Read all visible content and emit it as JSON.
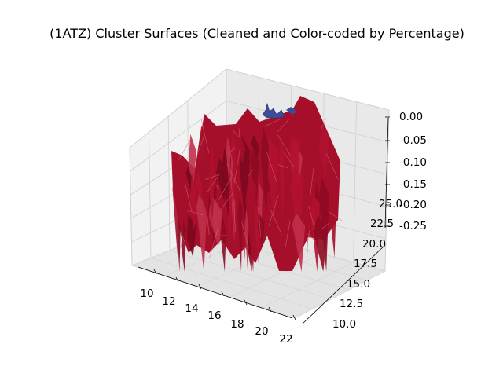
{
  "chart_data": {
    "type": "surface3d",
    "title": "(1ATZ) Cluster Surfaces (Cleaned and Color-coded by Percentage)",
    "xlabel": "",
    "ylabel": "",
    "zlabel": "",
    "x_ticks": [
      "10",
      "12",
      "14",
      "16",
      "18",
      "20",
      "22"
    ],
    "y_ticks": [
      "10.0",
      "12.5",
      "15.0",
      "17.5",
      "20.0",
      "22.5",
      "25.0"
    ],
    "z_ticks": [
      "0.00",
      "-0.05",
      "-0.10",
      "-0.15",
      "-0.20",
      "-0.25"
    ],
    "xlim": [
      9,
      22
    ],
    "ylim": [
      9,
      26
    ],
    "zlim": [
      -0.26,
      0.01
    ],
    "grid": true,
    "surfaces": [
      {
        "color": "#a50f2a",
        "edge_color": "#d9707f",
        "z_range": [
          -0.25,
          -0.01
        ]
      },
      {
        "color": "#3b4c9a",
        "z_range": [
          -0.02,
          0.0
        ]
      }
    ]
  }
}
